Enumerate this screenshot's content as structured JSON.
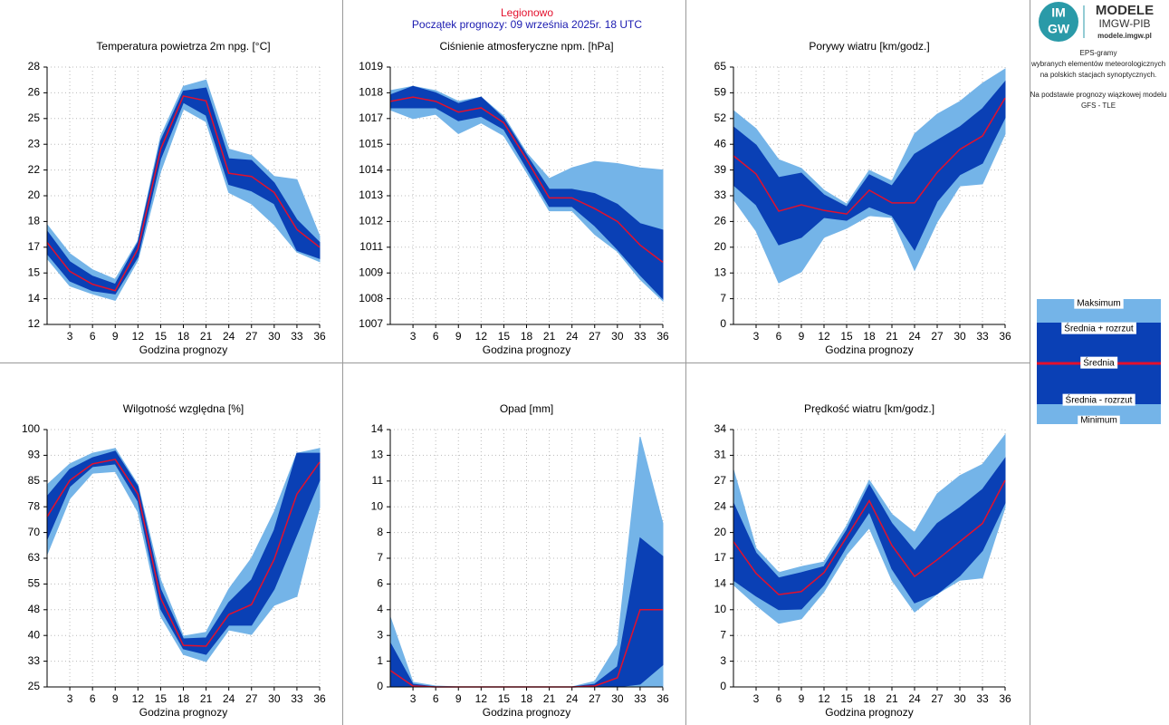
{
  "header": {
    "station": "Legionowo",
    "forecast_start": "Początek prognozy: 09 września 2025r. 18 UTC"
  },
  "logo": {
    "badge_top": "IM",
    "badge_bottom": "GW",
    "title": "MODELE",
    "subtitle": "IMGW-PIB",
    "url": "modele.imgw.pl"
  },
  "description": [
    "EPS-gramy",
    "wybranych elementów meteorologicznych",
    "na polskich stacjach  synoptycznych.",
    "Na podstawie prognozy wiązkowej modelu",
    "GFS - TLE"
  ],
  "legend": [
    {
      "name": "Maksimum",
      "color": "#74b4e8"
    },
    {
      "name": "Średnia + rozrzut",
      "color": "#0a40b5"
    },
    {
      "name": "Średnia",
      "color": "#e3102d"
    },
    {
      "name": "Średnia - rozrzut",
      "color": "#0a40b5"
    },
    {
      "name": "Minimum",
      "color": "#74b4e8"
    }
  ],
  "chart_data": [
    {
      "type": "band",
      "title": "Temperatura powietrza 2m npg. [°C]",
      "x_label": "Godzina prognozy",
      "x": [
        0,
        3,
        6,
        9,
        12,
        15,
        18,
        21,
        24,
        27,
        30,
        33,
        36
      ],
      "xlim": [
        0,
        36
      ],
      "xticks": [
        3,
        6,
        9,
        12,
        15,
        18,
        21,
        24,
        27,
        30,
        33,
        36
      ],
      "ylim": [
        12,
        28
      ],
      "yticks": [
        12,
        {
          "value": 13.6,
          "label": "14"
        },
        {
          "value": 15.2,
          "label": "15"
        },
        {
          "value": 16.8,
          "label": "17"
        },
        {
          "value": 18.4,
          "label": "18"
        },
        20,
        {
          "value": 21.6,
          "label": "22"
        },
        {
          "value": 23.2,
          "label": "23"
        },
        {
          "value": 24.8,
          "label": "25"
        },
        {
          "value": 26.4,
          "label": "26"
        },
        28
      ],
      "series": [
        {
          "values": [
            18.2,
            16.4,
            15.4,
            14.8,
            17.2,
            23.7,
            26.8,
            27.2,
            22.9,
            22.5,
            21.2,
            21.0,
            17.5
          ]
        },
        {
          "values": [
            17.8,
            15.9,
            15.0,
            14.5,
            17.1,
            23.4,
            26.5,
            26.7,
            22.3,
            22.2,
            20.8,
            18.5,
            17.1
          ]
        },
        {
          "values": [
            17.1,
            15.3,
            14.5,
            14.1,
            16.7,
            22.9,
            26.2,
            25.9,
            21.4,
            21.2,
            20.2,
            17.9,
            16.8
          ]
        },
        {
          "values": [
            16.4,
            14.7,
            14.1,
            13.9,
            16.2,
            22.3,
            25.8,
            25.0,
            20.7,
            20.3,
            19.5,
            16.6,
            16.1
          ]
        },
        {
          "values": [
            16.1,
            14.4,
            13.9,
            13.5,
            16.0,
            21.5,
            25.4,
            24.6,
            20.2,
            19.5,
            18.2,
            16.5,
            15.9
          ]
        }
      ]
    },
    {
      "type": "band",
      "title": "Ciśnienie atmosferyczne npm. [hPa]",
      "x_label": "Godzina prognozy",
      "x": [
        0,
        3,
        6,
        9,
        12,
        15,
        18,
        21,
        24,
        27,
        30,
        33,
        36
      ],
      "xlim": [
        0,
        36
      ],
      "xticks": [
        3,
        6,
        9,
        12,
        15,
        18,
        21,
        24,
        27,
        30,
        33,
        36
      ],
      "ylim": [
        1007,
        1019
      ],
      "yticks": [
        1007,
        {
          "value": 1008.2,
          "label": "1008"
        },
        {
          "value": 1009.4,
          "label": "1009"
        },
        {
          "value": 1010.6,
          "label": "1011"
        },
        {
          "value": 1011.8,
          "label": "1012"
        },
        1013,
        {
          "value": 1014.2,
          "label": "1014"
        },
        {
          "value": 1015.4,
          "label": "1015"
        },
        {
          "value": 1016.6,
          "label": "1017"
        },
        {
          "value": 1017.8,
          "label": "1018"
        },
        1019
      ],
      "series": [
        {
          "values": [
            1017.9,
            1018.1,
            1017.9,
            1017.4,
            1017.6,
            1016.7,
            1015.0,
            1013.8,
            1014.3,
            1014.6,
            1014.5,
            1014.3,
            1014.2
          ]
        },
        {
          "values": [
            1017.7,
            1018.1,
            1017.8,
            1017.3,
            1017.6,
            1016.6,
            1014.9,
            1013.3,
            1013.3,
            1013.1,
            1012.6,
            1011.7,
            1011.4
          ]
        },
        {
          "values": [
            1017.4,
            1017.6,
            1017.4,
            1016.9,
            1017.1,
            1016.4,
            1014.7,
            1012.9,
            1012.9,
            1012.4,
            1011.8,
            1010.7,
            1009.9
          ]
        },
        {
          "values": [
            1017.1,
            1017.1,
            1017.1,
            1016.5,
            1016.7,
            1016.1,
            1014.3,
            1012.5,
            1012.5,
            1011.6,
            1010.5,
            1009.3,
            1008.2
          ]
        },
        {
          "values": [
            1017.0,
            1016.6,
            1016.8,
            1015.9,
            1016.4,
            1015.8,
            1014.1,
            1012.3,
            1012.3,
            1011.2,
            1010.4,
            1009.1,
            1008.1
          ]
        }
      ]
    },
    {
      "type": "band",
      "title": "Porywy wiatru [km/godz.]",
      "x_label": "Godzina prognozy",
      "x": [
        0,
        3,
        6,
        9,
        12,
        15,
        18,
        21,
        24,
        27,
        30,
        33,
        36
      ],
      "xlim": [
        0,
        36
      ],
      "xticks": [
        3,
        6,
        9,
        12,
        15,
        18,
        21,
        24,
        27,
        30,
        33,
        36
      ],
      "ylim": [
        0,
        65
      ],
      "yticks": [
        0,
        {
          "value": 6.5,
          "label": "7"
        },
        13,
        {
          "value": 19.5,
          "label": "20"
        },
        26,
        {
          "value": 32.5,
          "label": "33"
        },
        39,
        {
          "value": 45.5,
          "label": "46"
        },
        52,
        {
          "value": 58.5,
          "label": "59"
        },
        65
      ],
      "series": [
        {
          "values": [
            54.0,
            49.4,
            41.6,
            39.4,
            33.9,
            30.4,
            38.9,
            36.2,
            48.1,
            53.1,
            56.3,
            60.9,
            64.5
          ]
        },
        {
          "values": [
            49.9,
            45.3,
            37.1,
            38.2,
            32.7,
            29.7,
            37.8,
            35.0,
            43.0,
            46.5,
            49.9,
            54.5,
            61.3
          ]
        },
        {
          "values": [
            42.6,
            38.0,
            28.6,
            30.2,
            28.8,
            27.9,
            33.9,
            30.7,
            30.7,
            38.4,
            44.2,
            47.6,
            57.2
          ]
        },
        {
          "values": [
            35.2,
            30.2,
            20.1,
            22.0,
            27.0,
            26.3,
            29.7,
            27.5,
            18.8,
            31.1,
            37.8,
            40.7,
            52.2
          ]
        },
        {
          "values": [
            31.6,
            23.6,
            10.5,
            13.3,
            22.0,
            24.3,
            27.5,
            27.0,
            13.7,
            25.9,
            35.0,
            35.5,
            48.1
          ]
        }
      ]
    },
    {
      "type": "band",
      "title": "Wilgotność względna [%]",
      "x_label": "Godzina prognozy",
      "x": [
        0,
        3,
        6,
        9,
        12,
        15,
        18,
        21,
        24,
        27,
        30,
        33,
        36
      ],
      "xlim": [
        0,
        36
      ],
      "xticks": [
        3,
        6,
        9,
        12,
        15,
        18,
        21,
        24,
        27,
        30,
        33,
        36
      ],
      "ylim": [
        25,
        100
      ],
      "yticks": [
        25,
        {
          "value": 32.5,
          "label": "33"
        },
        40,
        {
          "value": 47.5,
          "label": "48"
        },
        55,
        {
          "value": 62.5,
          "label": "63"
        },
        70,
        {
          "value": 77.5,
          "label": "78"
        },
        85,
        {
          "value": 92.5,
          "label": "93"
        },
        100
      ],
      "series": [
        {
          "values": [
            83.9,
            90.0,
            93.1,
            94.5,
            83.9,
            56.2,
            39.8,
            40.9,
            53.5,
            62.5,
            76.0,
            93.1,
            94.5
          ]
        },
        {
          "values": [
            80.5,
            88.4,
            91.8,
            93.7,
            83.4,
            53.5,
            39.0,
            39.3,
            49.6,
            56.2,
            70.7,
            93.1,
            93.1
          ]
        },
        {
          "values": [
            74.6,
            85.2,
            90.0,
            91.3,
            81.2,
            50.9,
            37.1,
            36.9,
            46.1,
            49.0,
            62.2,
            81.2,
            90.5
          ]
        },
        {
          "values": [
            68.0,
            83.4,
            89.2,
            90.0,
            79.1,
            47.7,
            36.1,
            34.5,
            43.0,
            43.0,
            53.5,
            69.4,
            85.2
          ]
        },
        {
          "values": [
            63.6,
            79.9,
            87.3,
            87.8,
            76.0,
            45.6,
            34.5,
            32.4,
            41.6,
            40.3,
            48.8,
            51.4,
            77.3
          ]
        }
      ]
    },
    {
      "type": "band",
      "title": "Opad [mm]",
      "x_label": "Godzina prognozy",
      "x": [
        0,
        3,
        6,
        9,
        12,
        15,
        18,
        21,
        24,
        27,
        30,
        33,
        36
      ],
      "xlim": [
        0,
        36
      ],
      "xticks": [
        3,
        6,
        9,
        12,
        15,
        18,
        21,
        24,
        27,
        30,
        33,
        36
      ],
      "ylim": [
        0,
        14
      ],
      "yticks": [
        0,
        {
          "value": 1.4,
          "label": "1"
        },
        {
          "value": 2.8,
          "label": "3"
        },
        {
          "value": 4.2,
          "label": "4"
        },
        {
          "value": 5.6,
          "label": "6"
        },
        7,
        {
          "value": 8.4,
          "label": "8"
        },
        {
          "value": 9.8,
          "label": "10"
        },
        {
          "value": 11.2,
          "label": "11"
        },
        {
          "value": 12.6,
          "label": "13"
        },
        14
      ],
      "series": [
        {
          "values": [
            3.8,
            0.25,
            0.05,
            0,
            0,
            0,
            0,
            0,
            0,
            0.3,
            2.3,
            13.6,
            8.9
          ]
        },
        {
          "values": [
            2.4,
            0.15,
            0,
            0,
            0,
            0,
            0,
            0,
            0,
            0.15,
            1.1,
            8.1,
            7.1
          ]
        },
        {
          "values": [
            0.9,
            0.05,
            0,
            0,
            0,
            0,
            0,
            0,
            0,
            0.05,
            0.5,
            4.2,
            4.2
          ]
        },
        {
          "values": [
            0,
            0,
            0,
            0,
            0,
            0,
            0,
            0,
            0,
            0,
            0,
            0.15,
            1.2
          ]
        },
        {
          "values": [
            0,
            0,
            0,
            0,
            0,
            0,
            0,
            0,
            0,
            0,
            0,
            0,
            0
          ]
        }
      ]
    },
    {
      "type": "band",
      "title": "Prędkość wiatru [km/godz.]",
      "x_label": "Godzina prognozy",
      "x": [
        0,
        3,
        6,
        9,
        12,
        15,
        18,
        21,
        24,
        27,
        30,
        33,
        36
      ],
      "xlim": [
        0,
        36
      ],
      "xticks": [
        3,
        6,
        9,
        12,
        15,
        18,
        21,
        24,
        27,
        30,
        33,
        36
      ],
      "ylim": [
        0,
        34
      ],
      "yticks": [
        0,
        {
          "value": 3.4,
          "label": "3"
        },
        {
          "value": 6.8,
          "label": "7"
        },
        {
          "value": 10.2,
          "label": "10"
        },
        {
          "value": 13.6,
          "label": "14"
        },
        17,
        {
          "value": 20.4,
          "label": "20"
        },
        {
          "value": 23.8,
          "label": "24"
        },
        {
          "value": 27.2,
          "label": "27"
        },
        {
          "value": 30.6,
          "label": "31"
        },
        34
      ],
      "series": [
        {
          "values": [
            28.7,
            18.3,
            15.1,
            15.9,
            16.5,
            21.3,
            27.3,
            22.8,
            20.4,
            25.5,
            27.9,
            29.4,
            33.3
          ]
        },
        {
          "values": [
            24.3,
            17.7,
            14.4,
            15.1,
            15.9,
            20.7,
            26.7,
            21.6,
            18.0,
            21.6,
            23.7,
            26.1,
            30.2
          ]
        },
        {
          "values": [
            19.2,
            15.0,
            12.2,
            12.6,
            15.1,
            19.8,
            24.6,
            18.7,
            14.6,
            16.8,
            19.2,
            21.6,
            27.3
          ]
        },
        {
          "values": [
            14.1,
            12.0,
            10.2,
            10.3,
            13.5,
            18.6,
            23.1,
            15.6,
            11.1,
            12.3,
            14.7,
            18.0,
            24.3
          ]
        },
        {
          "values": [
            13.5,
            10.8,
            8.4,
            9.0,
            12.6,
            17.5,
            21.0,
            14.1,
            9.9,
            12.3,
            14.1,
            14.4,
            23.7
          ]
        }
      ]
    }
  ]
}
